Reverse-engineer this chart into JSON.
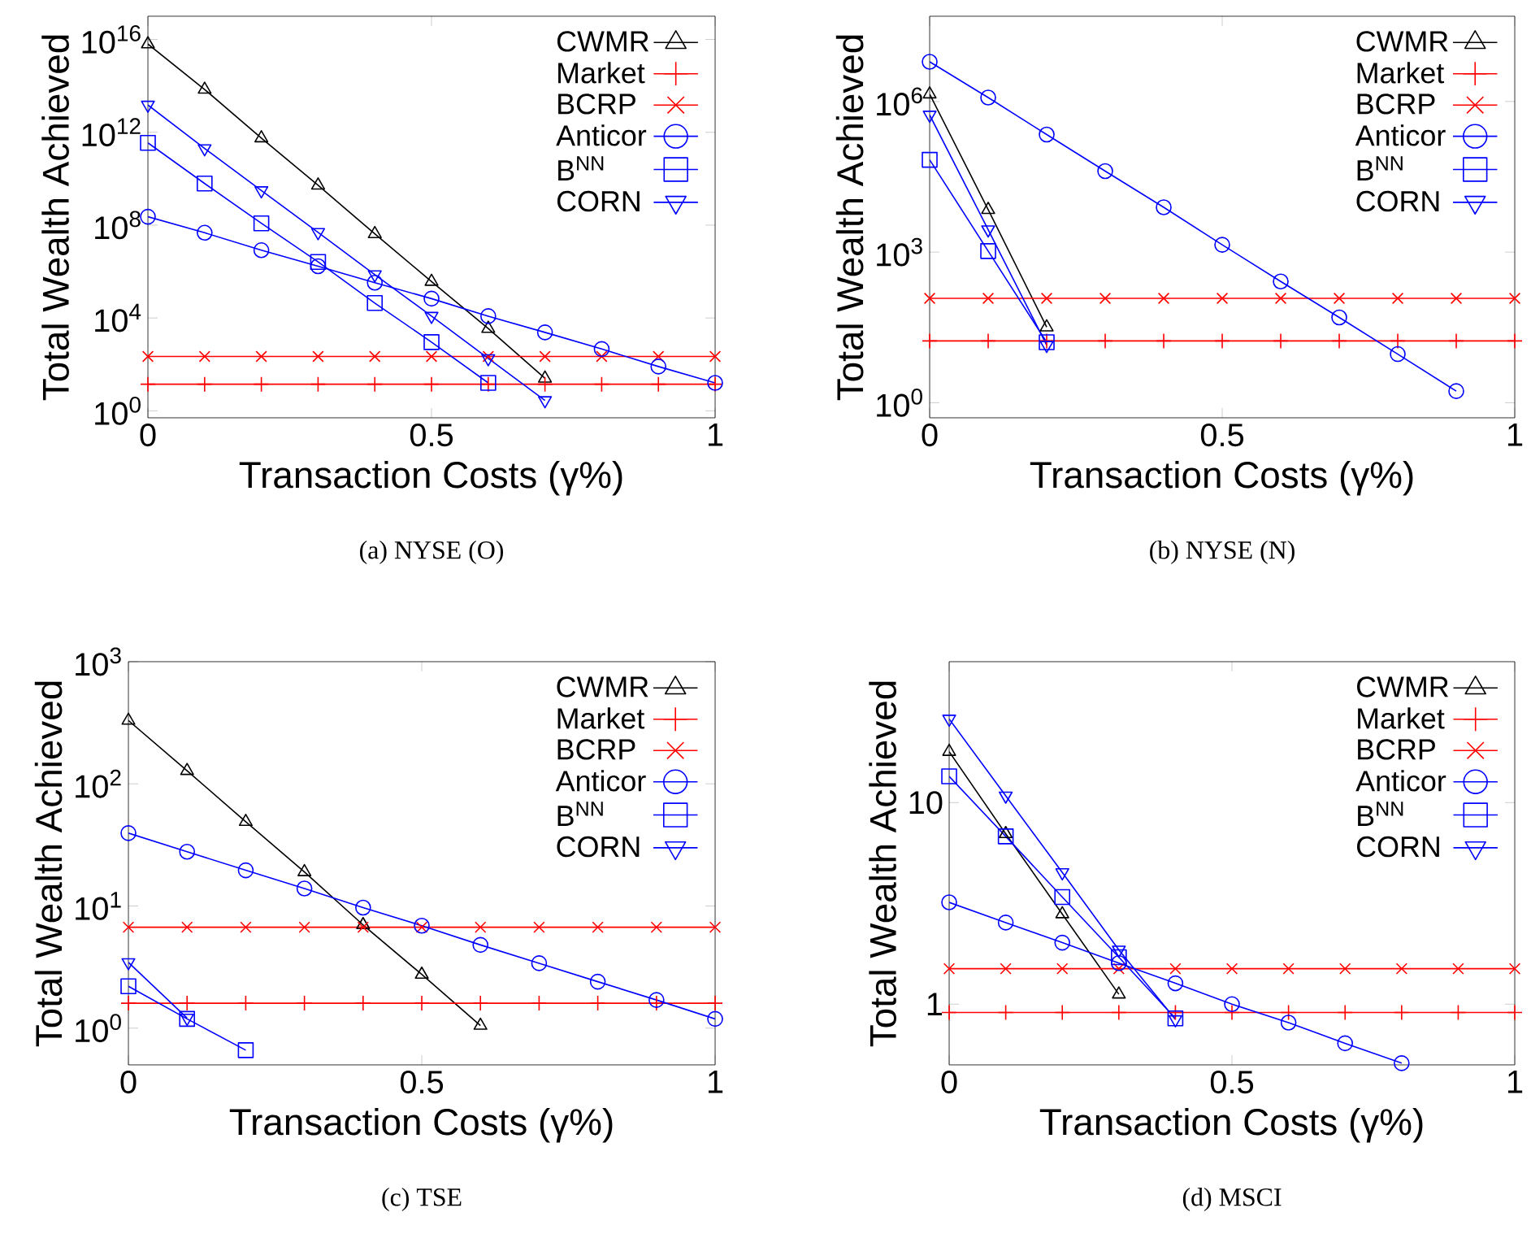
{
  "chart_data": [
    {
      "type": "line",
      "title": "(a)  NYSE (O)",
      "xlabel": "Transaction Costs (γ%)",
      "ylabel": "Total Wealth Achieved",
      "log": "y",
      "legend": "top right",
      "xlim": [
        0,
        1
      ],
      "xticks": [
        0,
        0.5,
        1
      ],
      "ylim": [
        0.5,
        1e+17
      ],
      "yticks": [
        {
          "value": 1,
          "label": "10$^{0}$"
        },
        {
          "value": 10000.0,
          "label": "10$^{4}$"
        },
        {
          "value": 100000000.0,
          "label": "10$^{8}$"
        },
        {
          "value": 1000000000000.0,
          "label": "10$^{12}$"
        },
        {
          "value": 1e+16,
          "label": "10$^{16}$"
        }
      ],
      "x": [
        0,
        0.1,
        0.2,
        0.3,
        0.4,
        0.5,
        0.6,
        0.7,
        0.8,
        0.9,
        1
      ],
      "series": [
        {
          "name": "CWMR",
          "color": "#000000",
          "marker": "triangle",
          "values": [
            6300000000000000.0,
            70000000000000.0,
            560000000000.0,
            5200000000.0,
            42000000.0,
            370000.0,
            3500,
            25,
            null,
            null,
            null
          ]
        },
        {
          "name": "Market",
          "color": "#ff0000",
          "marker": "plus",
          "values": [
            14,
            14,
            14,
            14,
            14,
            14,
            14,
            14,
            14,
            14,
            14
          ]
        },
        {
          "name": "BCRP",
          "color": "#ff0000",
          "marker": "cross",
          "values": [
            220,
            220,
            220,
            220,
            220,
            220,
            220,
            220,
            220,
            220,
            220
          ]
        },
        {
          "name": "Anticor",
          "color": "#0000ff",
          "marker": "circle",
          "values": [
            230000000.0,
            47000000.0,
            8300000.0,
            1700000.0,
            330000.0,
            68000.0,
            12000.0,
            2400,
            460,
            81,
            16
          ]
        },
        {
          "name": "B$^{NN}$",
          "color": "#0000ff",
          "marker": "square",
          "values": [
            350000000000.0,
            6200000000.0,
            120000000.0,
            2600000.0,
            44000.0,
            910,
            16,
            null,
            null,
            null,
            null
          ]
        },
        {
          "name": "CORN",
          "color": "#0000ff",
          "marker": "triangle_down",
          "values": [
            15000000000000.0,
            200000000000.0,
            3100000000.0,
            49000000.0,
            740000.0,
            12000.0,
            180,
            2.8,
            null,
            null,
            null
          ]
        }
      ]
    },
    {
      "type": "line",
      "title": "(b)  NYSE (N)",
      "xlabel": "Transaction Costs (γ%)",
      "ylabel": "Total Wealth Achieved",
      "log": "y",
      "legend": "top right",
      "xlim": [
        0,
        1
      ],
      "xticks": [
        0,
        0.5,
        1
      ],
      "ylim": [
        0.5,
        50000000.0
      ],
      "yticks": [
        {
          "value": 1,
          "label": "10$^{0}$"
        },
        {
          "value": 1000,
          "label": "10$^{3}$"
        },
        {
          "value": 1000000.0,
          "label": "10$^{6}$"
        }
      ],
      "x": [
        0,
        0.1,
        0.2,
        0.3,
        0.4,
        0.5,
        0.6,
        0.7,
        0.8,
        0.9,
        1
      ],
      "series": [
        {
          "name": "CWMR",
          "color": "#000000",
          "marker": "triangle",
          "values": [
            1400000.0,
            7000,
            32,
            null,
            null,
            null,
            null,
            null,
            null,
            null,
            null
          ]
        },
        {
          "name": "Market",
          "color": "#ff0000",
          "marker": "plus",
          "values": [
            17,
            17,
            17,
            17,
            17,
            17,
            17,
            17,
            17,
            17,
            17
          ]
        },
        {
          "name": "BCRP",
          "color": "#ff0000",
          "marker": "cross",
          "values": [
            120,
            120,
            120,
            120,
            120,
            120,
            120,
            120,
            120,
            120,
            120
          ]
        },
        {
          "name": "Anticor",
          "color": "#0000ff",
          "marker": "circle",
          "values": [
            6200000.0,
            1200000.0,
            220000.0,
            41000.0,
            7800,
            1400,
            260,
            50,
            9.3,
            1.7,
            null
          ]
        },
        {
          "name": "B$^{NN}$",
          "color": "#0000ff",
          "marker": "square",
          "values": [
            69000.0,
            1050,
            16,
            null,
            null,
            null,
            null,
            null,
            null,
            null,
            null
          ]
        },
        {
          "name": "CORN",
          "color": "#0000ff",
          "marker": "triangle_down",
          "values": [
            540000.0,
            2800,
            14,
            null,
            null,
            null,
            null,
            null,
            null,
            null,
            null
          ]
        }
      ]
    },
    {
      "type": "line",
      "title": "(c)  TSE",
      "xlabel": "Transaction Costs (γ%)",
      "ylabel": "Total Wealth Achieved",
      "log": "y",
      "legend": "top right",
      "xlim": [
        0,
        1
      ],
      "xticks": [
        0,
        0.5,
        1
      ],
      "ylim": [
        0.5,
        1000
      ],
      "yticks": [
        {
          "value": 1,
          "label": "10$^{0}$"
        },
        {
          "value": 10,
          "label": "10$^{1}$"
        },
        {
          "value": 100,
          "label": "10$^{2}$"
        },
        {
          "value": 1000,
          "label": "10$^{3}$"
        }
      ],
      "x": [
        0,
        0.1,
        0.2,
        0.3,
        0.4,
        0.5,
        0.6,
        0.7,
        0.8,
        0.9,
        1
      ],
      "series": [
        {
          "name": "CWMR",
          "color": "#000000",
          "marker": "triangle",
          "values": [
            330,
            128,
            49,
            19,
            7,
            2.75,
            1.05,
            null,
            null,
            null,
            null
          ]
        },
        {
          "name": "Market",
          "color": "#ff0000",
          "marker": "plus",
          "values": [
            1.6,
            1.6,
            1.6,
            1.6,
            1.6,
            1.6,
            1.6,
            1.6,
            1.6,
            1.6,
            1.6
          ]
        },
        {
          "name": "BCRP",
          "color": "#ff0000",
          "marker": "cross",
          "values": [
            6.7,
            6.7,
            6.7,
            6.7,
            6.7,
            6.7,
            6.7,
            6.7,
            6.7,
            6.7,
            6.7
          ]
        },
        {
          "name": "Anticor",
          "color": "#0000ff",
          "marker": "circle",
          "values": [
            39.5,
            27.8,
            19.6,
            13.9,
            9.7,
            6.9,
            4.8,
            3.4,
            2.4,
            1.7,
            1.19
          ]
        },
        {
          "name": "B$^{NN}$",
          "color": "#0000ff",
          "marker": "square",
          "values": [
            2.2,
            1.19,
            0.66,
            null,
            null,
            null,
            null,
            null,
            null,
            null,
            null
          ]
        },
        {
          "name": "CORN",
          "color": "#0000ff",
          "marker": "triangle_down",
          "values": [
            3.45,
            1.21,
            null,
            null,
            null,
            null,
            null,
            null,
            null,
            null,
            null
          ]
        }
      ]
    },
    {
      "type": "line",
      "title": "(d)  MSCI",
      "xlabel": "Transaction Costs (γ%)",
      "ylabel": "Total Wealth Achieved",
      "log": "y",
      "legend": "top right",
      "xlim": [
        0,
        1
      ],
      "xticks": [
        0,
        0.5,
        1
      ],
      "ylim": [
        0.5,
        50
      ],
      "yticks": [
        1,
        10
      ],
      "x": [
        0,
        0.1,
        0.2,
        0.3,
        0.4,
        0.5,
        0.6,
        0.7,
        0.8,
        0.9,
        1
      ],
      "series": [
        {
          "name": "CWMR",
          "color": "#000000",
          "marker": "triangle",
          "values": [
            17.9,
            7.0,
            2.8,
            1.12,
            null,
            null,
            null,
            null,
            null,
            null,
            null
          ]
        },
        {
          "name": "Market",
          "color": "#ff0000",
          "marker": "plus",
          "values": [
            0.91,
            0.91,
            0.91,
            0.91,
            0.91,
            0.91,
            0.91,
            0.91,
            0.91,
            0.91,
            0.91
          ]
        },
        {
          "name": "BCRP",
          "color": "#ff0000",
          "marker": "cross",
          "values": [
            1.5,
            1.5,
            1.5,
            1.5,
            1.5,
            1.5,
            1.5,
            1.5,
            1.5,
            1.5,
            1.5
          ]
        },
        {
          "name": "Anticor",
          "color": "#0000ff",
          "marker": "circle",
          "values": [
            3.2,
            2.54,
            2.02,
            1.6,
            1.27,
            1.0,
            0.81,
            0.64,
            0.51,
            null,
            null
          ]
        },
        {
          "name": "B$^{NN}$",
          "color": "#0000ff",
          "marker": "square",
          "values": [
            13.5,
            6.8,
            3.4,
            1.71,
            0.85,
            null,
            null,
            null,
            null,
            null,
            null
          ]
        },
        {
          "name": "CORN",
          "color": "#0000ff",
          "marker": "triangle_down",
          "values": [
            26,
            10.8,
            4.5,
            1.86,
            0.84,
            null,
            null,
            null,
            null,
            null,
            null
          ]
        }
      ]
    }
  ]
}
